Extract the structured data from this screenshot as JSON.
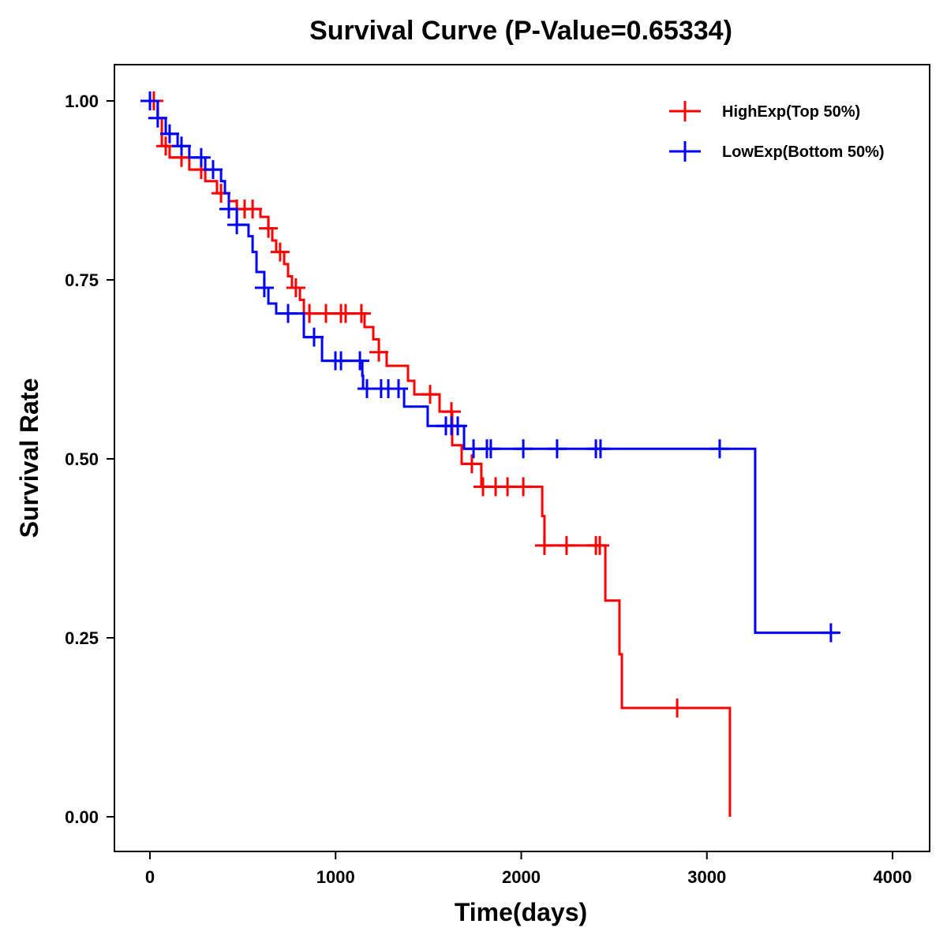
{
  "chart_data": {
    "type": "line",
    "subtype": "kaplan-meier step",
    "title": "Survival Curve (P-Value=0.65334)",
    "xlabel": "Time(days)",
    "ylabel": "Survival Rate",
    "xlim": [
      -190,
      4170
    ],
    "ylim": [
      -0.05,
      1.05
    ],
    "xticks": [
      0,
      1000,
      2000,
      3000,
      4000
    ],
    "xtick_labels": [
      "0",
      "1000",
      "2000",
      "3000",
      "4000"
    ],
    "yticks": [
      0,
      0.25,
      0.5,
      0.75,
      1.0
    ],
    "ytick_labels": [
      "0.00",
      "0.25",
      "0.50",
      "0.75",
      "1.00"
    ],
    "grid": false,
    "legend_position": "top-right",
    "series": [
      {
        "name": "HighExp(Top 50%)",
        "color": "#FF0000",
        "steps": [
          [
            0,
            1.0
          ],
          [
            42,
            0.976
          ],
          [
            64,
            0.937
          ],
          [
            106,
            0.921
          ],
          [
            212,
            0.904
          ],
          [
            298,
            0.888
          ],
          [
            361,
            0.871
          ],
          [
            425,
            0.86
          ],
          [
            468,
            0.849
          ],
          [
            595,
            0.838
          ],
          [
            638,
            0.822
          ],
          [
            659,
            0.805
          ],
          [
            680,
            0.789
          ],
          [
            723,
            0.772
          ],
          [
            744,
            0.755
          ],
          [
            765,
            0.739
          ],
          [
            808,
            0.722
          ],
          [
            829,
            0.703
          ],
          [
            1156,
            0.684
          ],
          [
            1203,
            0.667
          ],
          [
            1233,
            0.649
          ],
          [
            1275,
            0.63
          ],
          [
            1390,
            0.609
          ],
          [
            1424,
            0.59
          ],
          [
            1560,
            0.566
          ],
          [
            1628,
            0.519
          ],
          [
            1679,
            0.493
          ],
          [
            1785,
            0.461
          ],
          [
            2113,
            0.42
          ],
          [
            2125,
            0.379
          ],
          [
            2453,
            0.302
          ],
          [
            2529,
            0.227
          ],
          [
            2542,
            0.152
          ],
          [
            3124,
            0.0
          ]
        ],
        "end": 3124,
        "censored": [
          21,
          85,
          170,
          276,
          383,
          468,
          510,
          553,
          638,
          701,
          786,
          859,
          948,
          1029,
          1054,
          1139,
          1233,
          1509,
          1624,
          1734,
          1794,
          1862,
          1926,
          2011,
          2125,
          2244,
          2402,
          2423,
          2840
        ]
      },
      {
        "name": "LowExp(Bottom 50%)",
        "color": "#0000FF",
        "steps": [
          [
            0,
            1.0
          ],
          [
            42,
            0.976
          ],
          [
            85,
            0.954
          ],
          [
            149,
            0.937
          ],
          [
            212,
            0.921
          ],
          [
            298,
            0.904
          ],
          [
            383,
            0.888
          ],
          [
            404,
            0.871
          ],
          [
            425,
            0.849
          ],
          [
            468,
            0.827
          ],
          [
            531,
            0.811
          ],
          [
            553,
            0.789
          ],
          [
            574,
            0.761
          ],
          [
            616,
            0.739
          ],
          [
            638,
            0.717
          ],
          [
            680,
            0.703
          ],
          [
            829,
            0.67
          ],
          [
            927,
            0.637
          ],
          [
            1144,
            0.616
          ],
          [
            1148,
            0.598
          ],
          [
            1369,
            0.573
          ],
          [
            1496,
            0.546
          ],
          [
            1692,
            0.514
          ],
          [
            3260,
            0.257
          ]
        ],
        "end": 3700,
        "censored": [
          0,
          42,
          106,
          170,
          276,
          340,
          425,
          468,
          616,
          744,
          884,
          999,
          1029,
          1131,
          1169,
          1245,
          1284,
          1339,
          1594,
          1624,
          1658,
          1743,
          1815,
          1836,
          2011,
          2193,
          2402,
          2427,
          3069,
          3668
        ]
      }
    ]
  }
}
